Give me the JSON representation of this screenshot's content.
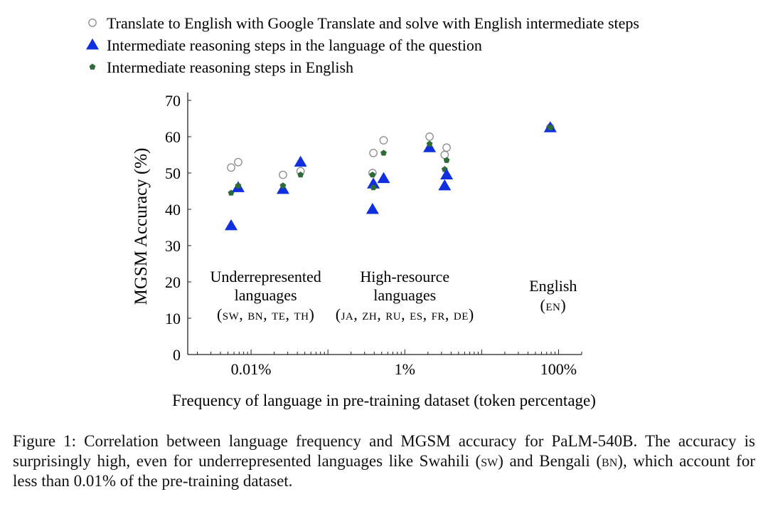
{
  "chart_data": {
    "type": "scatter",
    "xlabel": "Frequency of language in pre-training dataset (token percentage)",
    "ylabel": "MGSM Accuracy (%)",
    "x_scale": "log",
    "xlim_percent": [
      0.0015,
      200
    ],
    "ylim": [
      0,
      70
    ],
    "yticks": [
      0,
      10,
      20,
      30,
      40,
      50,
      60,
      70
    ],
    "xticks": [
      {
        "value": 0.01,
        "label": "0.01%"
      },
      {
        "value": 1,
        "label": "1%"
      },
      {
        "value": 100,
        "label": "100%"
      }
    ],
    "legend": {
      "placement": "top",
      "entries": [
        {
          "key": "translate",
          "label": "Translate to English with Google Translate and solve with English intermediate steps",
          "marker": "open-circle",
          "color": "#8a8a8a"
        },
        {
          "key": "native",
          "label": "Intermediate reasoning steps in the language of the question",
          "marker": "triangle",
          "color": "#1030e0"
        },
        {
          "key": "english",
          "label": "Intermediate reasoning steps in English",
          "marker": "pentagon",
          "color": "#2e6b38"
        }
      ]
    },
    "languages": [
      {
        "code": "sw",
        "freq": 0.0055,
        "translate": 51.5,
        "native": 35.5,
        "english": 44.5
      },
      {
        "code": "bn",
        "freq": 0.0068,
        "translate": 53.0,
        "native": 46.0,
        "english": 46.5
      },
      {
        "code": "te",
        "freq": 0.026,
        "translate": 49.5,
        "native": 45.5,
        "english": 46.5
      },
      {
        "code": "th",
        "freq": 0.044,
        "translate": 50.5,
        "native": 53.0,
        "english": 49.5
      },
      {
        "code": "ja",
        "freq": 0.38,
        "translate": 50.0,
        "native": 40.0,
        "english": 49.5
      },
      {
        "code": "zh",
        "freq": 0.39,
        "translate": 55.5,
        "native": 47.0,
        "english": 46.0
      },
      {
        "code": "ru",
        "freq": 0.53,
        "translate": 59.0,
        "native": 48.5,
        "english": 55.5
      },
      {
        "code": "es",
        "freq": 2.1,
        "translate": 60.0,
        "native": 57.0,
        "english": 58.0
      },
      {
        "code": "fr",
        "freq": 3.3,
        "translate": 55.0,
        "native": 46.5,
        "english": 51.0
      },
      {
        "code": "de",
        "freq": 3.5,
        "translate": 57.0,
        "native": 49.5,
        "english": 53.5
      },
      {
        "code": "en",
        "freq": 78,
        "translate": 62.5,
        "native": 62.5,
        "english": 62.5
      }
    ],
    "group_labels": [
      {
        "line1": "Underrepresented",
        "line2": "languages",
        "codes": "(sw, bn, te, th)",
        "center_freq": 0.0155
      },
      {
        "line1": "High-resource",
        "line2": "languages",
        "codes": "(ja, zh, ru, es, fr, de)",
        "center_freq": 1.0
      },
      {
        "line1": "English",
        "line2": "",
        "codes": "(en)",
        "center_freq": 85
      }
    ]
  },
  "caption": {
    "prefix": "Figure 1: Correlation between language frequency and MGSM accuracy for PaLM-540B. The accuracy is surprisingly high, even for underrepresented languages like Swahili (",
    "sw": "sw",
    "mid": ") and Bengali (",
    "bn": "bn",
    "suffix": "), which account for less than 0.01% of the pre-training dataset."
  }
}
